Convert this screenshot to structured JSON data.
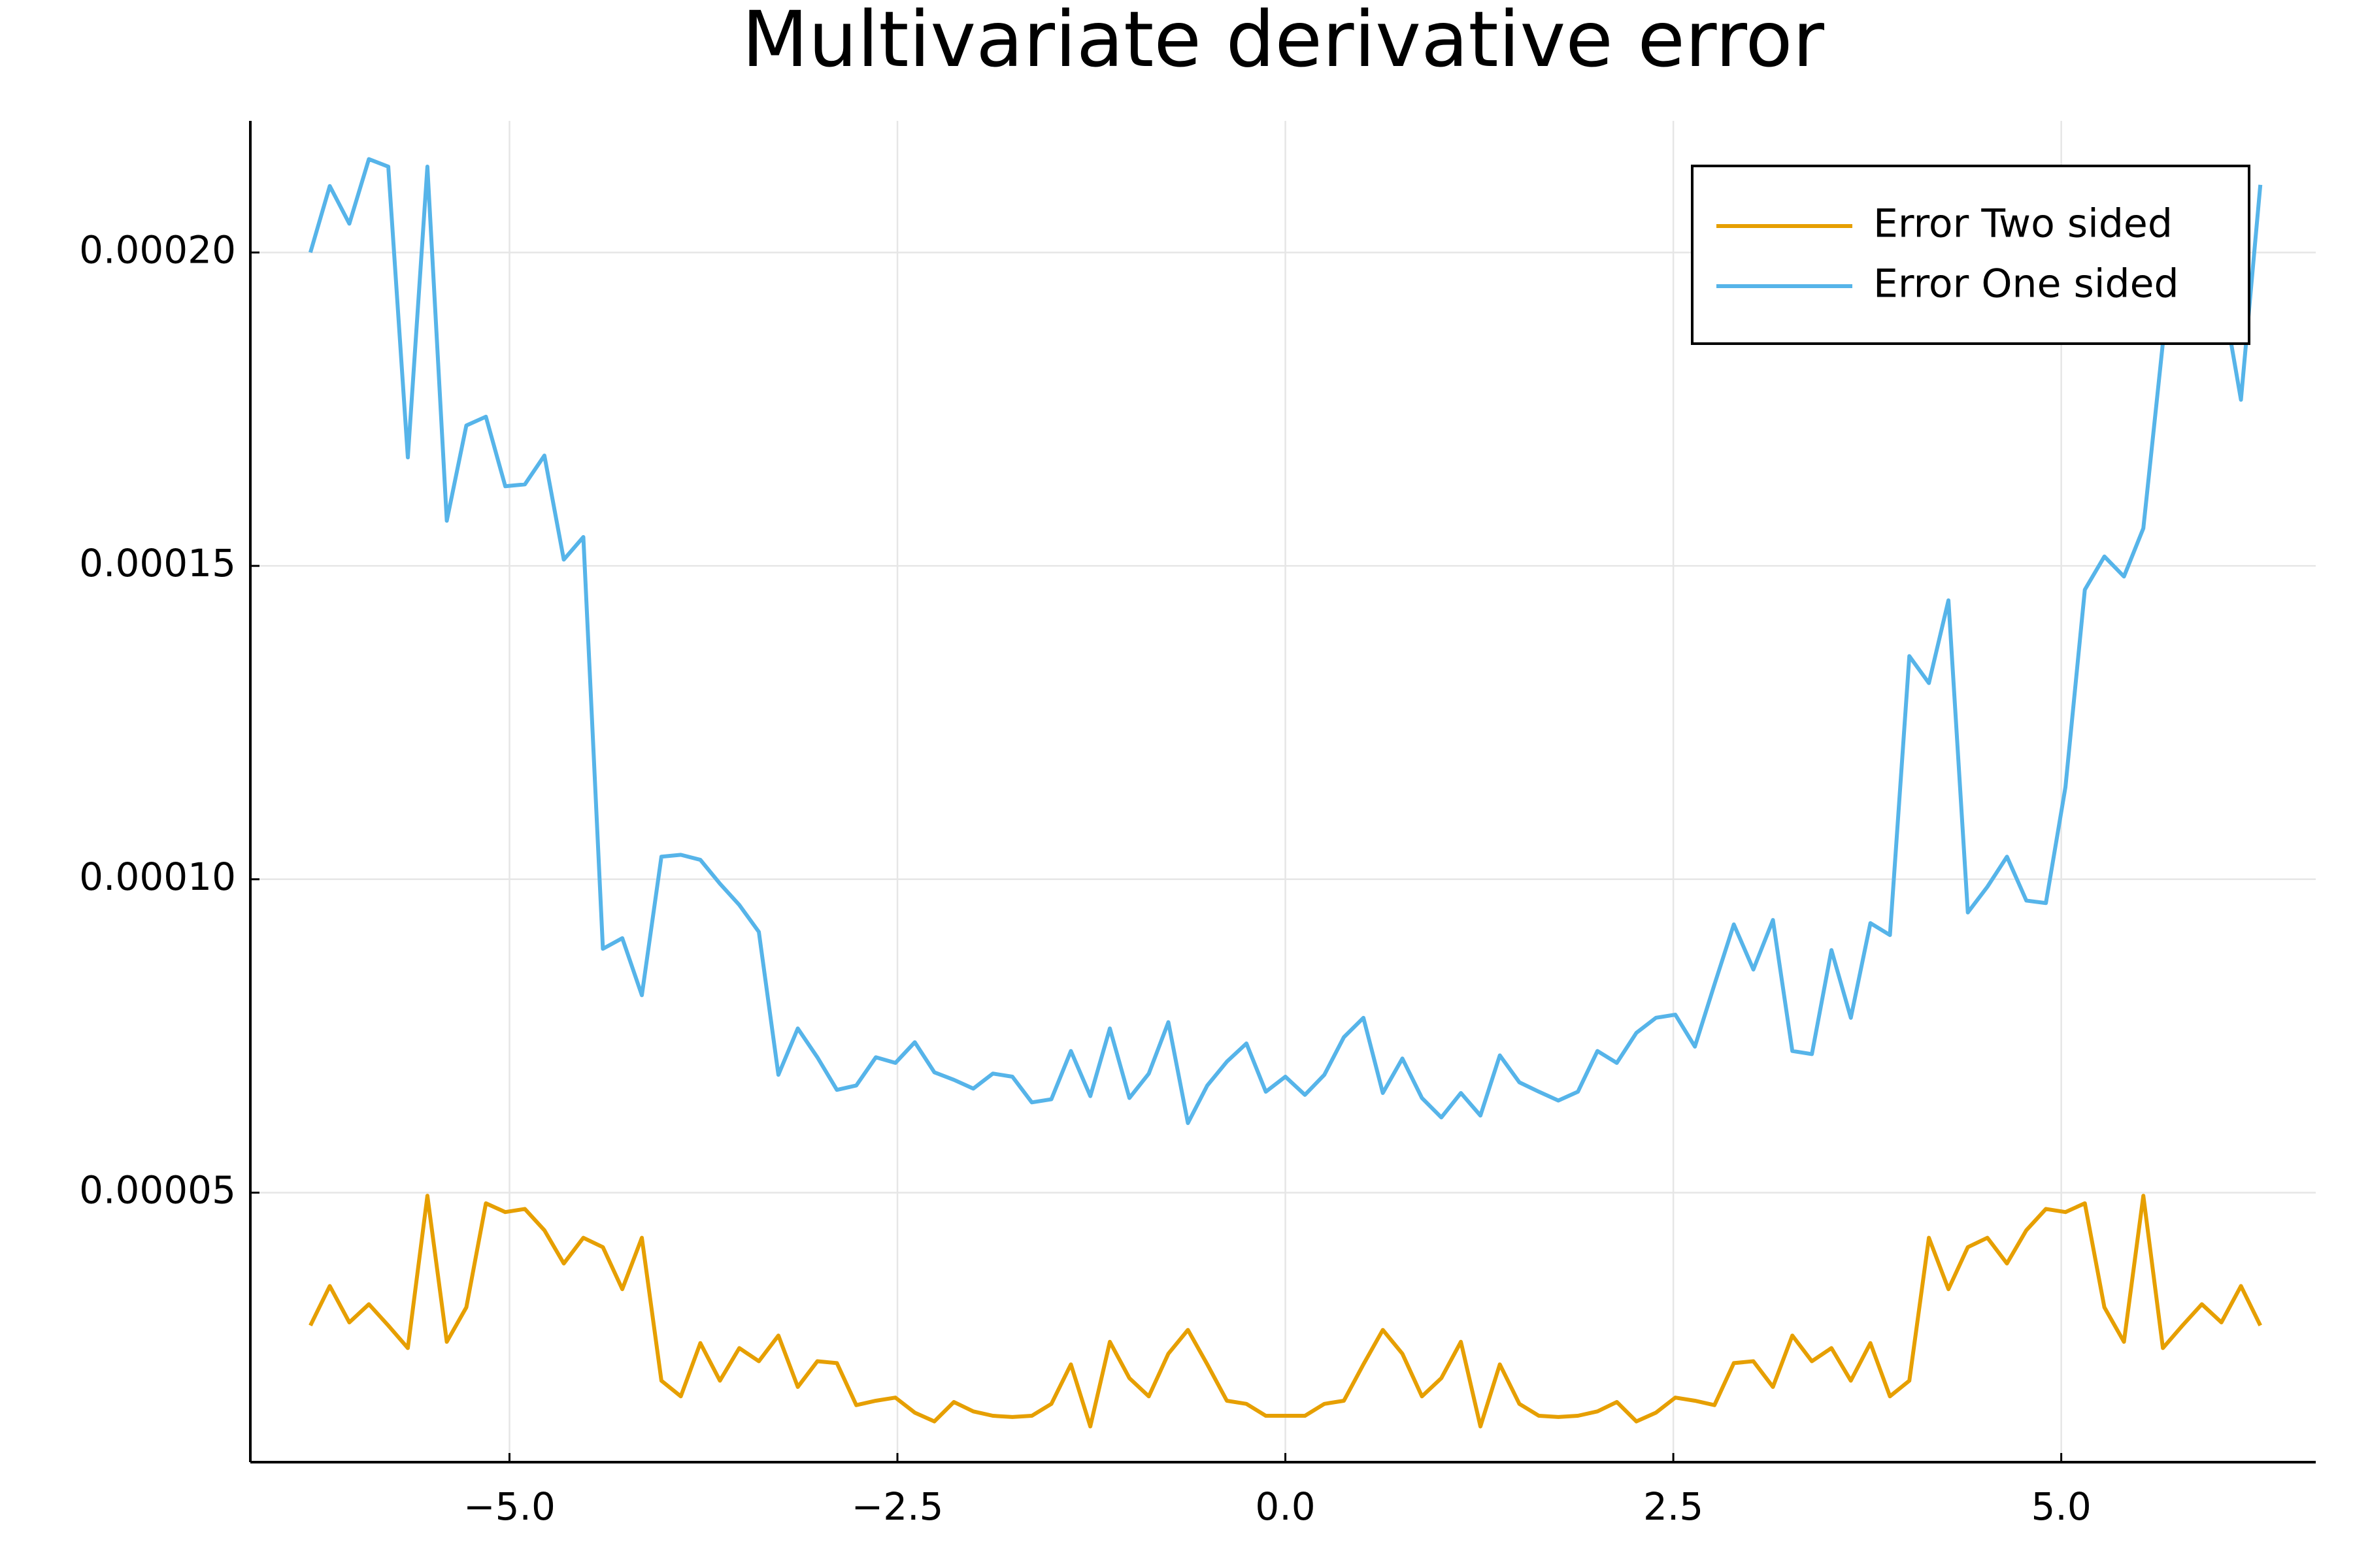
{
  "chart_data": {
    "type": "line",
    "title": "Multivariate derivative error",
    "x": [
      -6.283,
      -6.158,
      -6.032,
      -5.906,
      -5.781,
      -5.655,
      -5.529,
      -5.404,
      -5.278,
      -5.152,
      -5.027,
      -4.901,
      -4.775,
      -4.65,
      -4.524,
      -4.398,
      -4.273,
      -4.147,
      -4.021,
      -3.896,
      -3.77,
      -3.644,
      -3.519,
      -3.393,
      -3.267,
      -3.142,
      -3.016,
      -2.89,
      -2.765,
      -2.639,
      -2.513,
      -2.388,
      -2.262,
      -2.136,
      -2.011,
      -1.885,
      -1.759,
      -1.634,
      -1.508,
      -1.382,
      -1.257,
      -1.131,
      -1.005,
      -0.88,
      -0.754,
      -0.628,
      -0.503,
      -0.377,
      -0.251,
      -0.126,
      0,
      0.126,
      0.251,
      0.377,
      0.503,
      0.628,
      0.754,
      0.88,
      1.005,
      1.131,
      1.257,
      1.382,
      1.508,
      1.634,
      1.759,
      1.885,
      2.011,
      2.136,
      2.262,
      2.388,
      2.513,
      2.639,
      2.765,
      2.89,
      3.016,
      3.142,
      3.267,
      3.393,
      3.519,
      3.644,
      3.77,
      3.896,
      4.021,
      4.147,
      4.273,
      4.398,
      4.524,
      4.65,
      4.775,
      4.901,
      5.027,
      5.152,
      5.278,
      5.404,
      5.529,
      5.655,
      5.781,
      5.906,
      6.032,
      6.158,
      6.283
    ],
    "series": [
      {
        "name": "Error Two sided",
        "color": "#e69f00",
        "values": [
          2.88e-05,
          3.51e-05,
          2.93e-05,
          3.22e-05,
          2.88e-05,
          2.52e-05,
          4.95e-05,
          2.62e-05,
          3.17e-05,
          4.83e-05,
          4.69e-05,
          4.74e-05,
          4.4e-05,
          3.87e-05,
          4.28e-05,
          4.13e-05,
          3.46e-05,
          4.28e-05,
          2e-05,
          1.75e-05,
          2.6e-05,
          2e-05,
          2.52e-05,
          2.31e-05,
          2.72e-05,
          1.9e-05,
          2.31e-05,
          2.28e-05,
          1.61e-05,
          1.68e-05,
          1.73e-05,
          1.49e-05,
          1.35e-05,
          1.66e-05,
          1.51e-05,
          1.44e-05,
          1.42e-05,
          1.44e-05,
          1.63e-05,
          2.26e-05,
          1.27e-05,
          2.62e-05,
          2.04e-05,
          1.75e-05,
          2.43e-05,
          2.81e-05,
          2.26e-05,
          1.68e-05,
          1.63e-05,
          1.44e-05,
          1.44e-05,
          1.44e-05,
          1.63e-05,
          1.68e-05,
          2.26e-05,
          2.81e-05,
          2.43e-05,
          1.75e-05,
          2.04e-05,
          2.62e-05,
          1.27e-05,
          2.26e-05,
          1.63e-05,
          1.44e-05,
          1.42e-05,
          1.44e-05,
          1.51e-05,
          1.66e-05,
          1.35e-05,
          1.49e-05,
          1.73e-05,
          1.68e-05,
          1.61e-05,
          2.28e-05,
          2.31e-05,
          1.9e-05,
          2.72e-05,
          2.31e-05,
          2.52e-05,
          2e-05,
          2.6e-05,
          1.75e-05,
          2e-05,
          4.28e-05,
          3.46e-05,
          4.13e-05,
          4.28e-05,
          3.87e-05,
          4.4e-05,
          4.74e-05,
          4.69e-05,
          4.83e-05,
          3.17e-05,
          2.62e-05,
          4.95e-05,
          2.52e-05,
          2.88e-05,
          3.22e-05,
          2.93e-05,
          3.51e-05,
          2.88e-05
        ]
      },
      {
        "name": "Error One sided",
        "color": "#56b4e9",
        "values": [
          0.0002,
          0.0002106,
          0.0002046,
          0.0002149,
          0.0002137,
          0.0001673,
          0.0002137,
          0.0001572,
          0.0001724,
          0.0001738,
          0.0001627,
          0.000163,
          0.0001676,
          0.000151,
          0.0001546,
          8.89e-05,
          9.06e-05,
          8.15e-05,
          0.0001036,
          0.0001039,
          0.0001031,
          9.93e-05,
          9.59e-05,
          9.16e-05,
          6.88e-05,
          7.62e-05,
          7.16e-05,
          6.64e-05,
          6.71e-05,
          7.16e-05,
          7.07e-05,
          7.4e-05,
          6.92e-05,
          6.8e-05,
          6.66e-05,
          6.9e-05,
          6.85e-05,
          6.44e-05,
          6.49e-05,
          7.26e-05,
          6.54e-05,
          7.62e-05,
          6.51e-05,
          6.9e-05,
          7.72e-05,
          6.11e-05,
          6.71e-05,
          7.09e-05,
          7.38e-05,
          6.61e-05,
          6.85e-05,
          6.56e-05,
          6.88e-05,
          7.48e-05,
          7.79e-05,
          6.59e-05,
          7.14e-05,
          6.51e-05,
          6.2e-05,
          6.59e-05,
          6.23e-05,
          7.19e-05,
          6.76e-05,
          6.61e-05,
          6.47e-05,
          6.61e-05,
          7.26e-05,
          7.07e-05,
          7.55e-05,
          7.79e-05,
          7.84e-05,
          7.33e-05,
          8.32e-05,
          9.28e-05,
          8.56e-05,
          9.35e-05,
          7.26e-05,
          7.21e-05,
          8.87e-05,
          7.79e-05,
          9.3e-05,
          9.11e-05,
          0.0001356,
          0.0001313,
          0.0001445,
          9.47e-05,
          9.88e-05,
          0.0001036,
          9.66e-05,
          9.62e-05,
          0.0001147,
          0.0001462,
          0.0001515,
          0.0001483,
          0.000156,
          0.0001856,
          0.0001969,
          0.0002017,
          0.0001945,
          0.0001765,
          0.0002108
        ]
      }
    ],
    "xlim": [
      -6.67,
      6.64
    ],
    "ylim": [
      7e-06,
      0.000221
    ],
    "xticks": [
      {
        "value": -5,
        "label": "−5.0"
      },
      {
        "value": -2.5,
        "label": "−2.5"
      },
      {
        "value": 0,
        "label": "0.0"
      },
      {
        "value": 2.5,
        "label": "2.5"
      },
      {
        "value": 5,
        "label": "5.0"
      }
    ],
    "yticks": [
      {
        "value": 5e-05,
        "label": "0.00005"
      },
      {
        "value": 0.0001,
        "label": "0.00010"
      },
      {
        "value": 0.00015,
        "label": "0.00015"
      },
      {
        "value": 0.0002,
        "label": "0.00020"
      }
    ],
    "grid": true,
    "legend": "top right"
  }
}
